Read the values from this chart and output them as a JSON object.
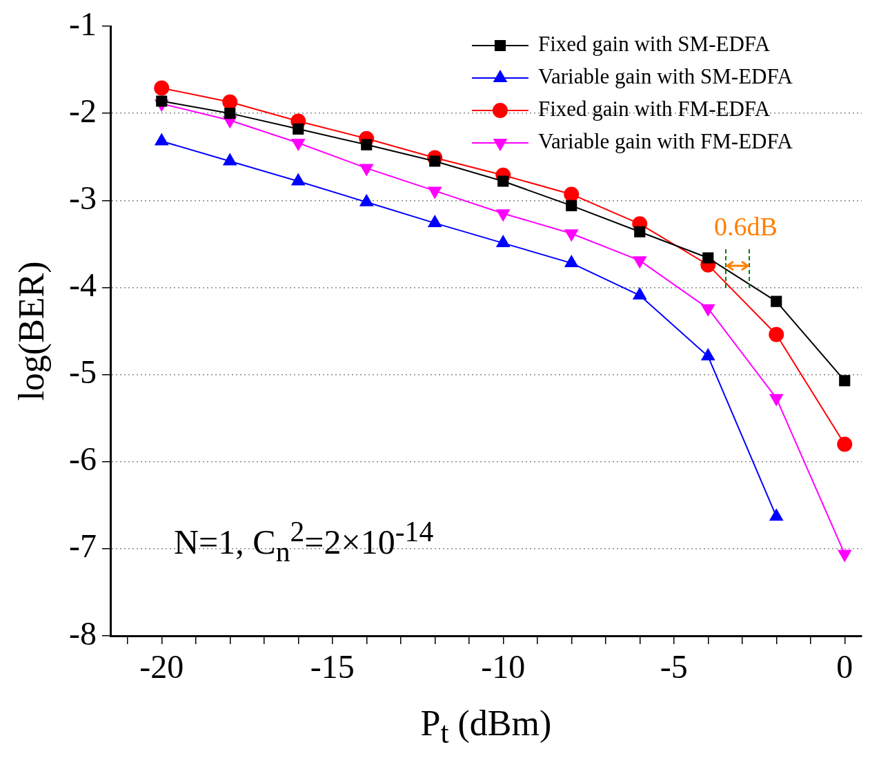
{
  "chart_data": {
    "type": "line",
    "xlabel": "P$_{t}$ (dBm)",
    "ylabel": "log(BER)",
    "xlim": [
      -21.5,
      0.5
    ],
    "xticks": [
      {
        "value": -21,
        "label": null
      },
      -20,
      {
        "value": -19,
        "label": null
      },
      {
        "value": -18,
        "label": null
      },
      {
        "value": -17,
        "label": null
      },
      {
        "value": -16,
        "label": null
      },
      -15,
      {
        "value": -14,
        "label": null
      },
      {
        "value": -13,
        "label": null
      },
      {
        "value": -12,
        "label": null
      },
      {
        "value": -11,
        "label": null
      },
      -10,
      {
        "value": -9,
        "label": null
      },
      {
        "value": -8,
        "label": null
      },
      {
        "value": -7,
        "label": null
      },
      {
        "value": -6,
        "label": null
      },
      -5,
      {
        "value": -4,
        "label": null
      },
      {
        "value": -3,
        "label": null
      },
      {
        "value": -2,
        "label": null
      },
      {
        "value": -1,
        "label": null
      },
      0
    ],
    "ylim": [
      -8,
      -1
    ],
    "yticks": [
      -8,
      -7,
      -6,
      -5,
      -4,
      -3,
      -2,
      -1
    ],
    "grid": "y",
    "legend": "top right",
    "line_style": "solid",
    "series": [
      {
        "name": "Fixed gain with SM-EDFA",
        "color": "#000000",
        "marker": "square",
        "x": [
          -20,
          -18,
          -16,
          -14,
          -12,
          -10,
          -8,
          -6,
          -4,
          -2,
          0
        ],
        "values": [
          -1.86,
          -2.0,
          -2.18,
          -2.36,
          -2.55,
          -2.78,
          -3.06,
          -3.36,
          -3.66,
          -4.16,
          -5.07
        ]
      },
      {
        "name": "Variable gain with SM-EDFA",
        "color": "#0000ff",
        "marker": "triangle",
        "x": [
          -20,
          -18,
          -16,
          -14,
          -12,
          -10,
          -8,
          -6,
          -4,
          -2
        ],
        "values": [
          -2.32,
          -2.55,
          -2.78,
          -3.02,
          -3.26,
          -3.49,
          -3.72,
          -4.09,
          -4.79,
          -6.63
        ]
      },
      {
        "name": "Fixed gain with FM-EDFA",
        "color": "#ff0000",
        "marker": "circle",
        "x": [
          -20,
          -18,
          -16,
          -14,
          -12,
          -10,
          -8,
          -6,
          -4,
          -2,
          0
        ],
        "values": [
          -1.71,
          -1.87,
          -2.09,
          -2.29,
          -2.51,
          -2.71,
          -2.93,
          -3.27,
          -3.74,
          -4.54,
          -5.8
        ]
      },
      {
        "name": "Variable gain with FM-EDFA",
        "color": "#ff00ff",
        "marker": "triangle-down",
        "x": [
          -20,
          -18,
          -16,
          -14,
          -12,
          -10,
          -8,
          -6,
          -4,
          -2,
          0
        ],
        "values": [
          -1.89,
          -2.08,
          -2.34,
          -2.63,
          -2.89,
          -3.15,
          -3.38,
          -3.69,
          -4.24,
          -5.27,
          -7.06
        ]
      }
    ],
    "annotations": [
      "0.6dB",
      "N=1, C$_{n}$$^{2}$=2×10$^{-14}$"
    ]
  }
}
